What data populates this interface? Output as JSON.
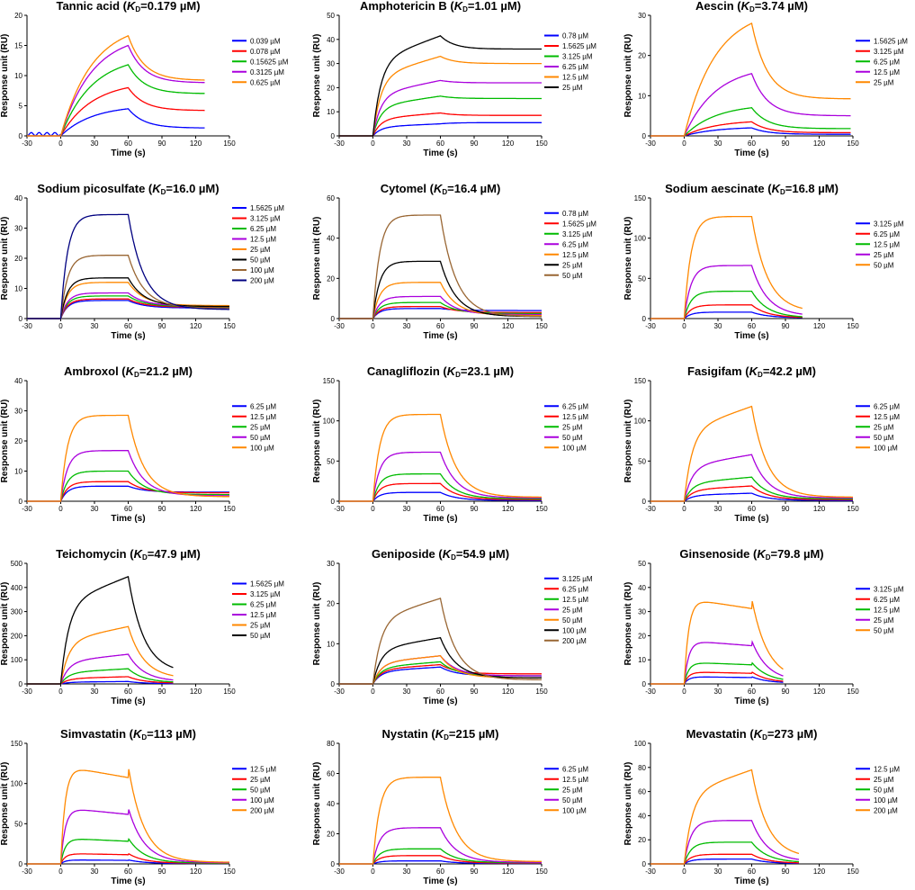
{
  "x_label": "Time (s)",
  "y_label": "Response unit (RU)",
  "kd_symbol": "K",
  "kd_subscript": "D",
  "chart_data": [
    {
      "type": "line",
      "compound": "Tannic acid",
      "kd_value": "0.179 µM",
      "ylim": [
        0,
        20
      ],
      "yticks": [
        0,
        5,
        10,
        15,
        20
      ],
      "xlim": [
        -30,
        150
      ],
      "xticks": [
        -30,
        0,
        30,
        60,
        90,
        120,
        150
      ],
      "end": 128,
      "series": [
        {
          "name": "0.039 µM",
          "color": "#0000ff",
          "peak": 4.5,
          "plateau": 1.3,
          "shape": "ass",
          "baseline_noise": true
        },
        {
          "name": "0.078 µM",
          "color": "#ff0000",
          "peak": 8.0,
          "plateau": 4.2,
          "shape": "ass"
        },
        {
          "name": "0.15625 µM",
          "color": "#00bb00",
          "peak": 11.8,
          "plateau": 7.0,
          "shape": "ass"
        },
        {
          "name": "0.3125 µM",
          "color": "#aa00dd",
          "peak": 15.0,
          "plateau": 8.8,
          "shape": "ass"
        },
        {
          "name": "0.625 µM",
          "color": "#ff8800",
          "peak": 16.6,
          "plateau": 9.2,
          "shape": "ass"
        }
      ]
    },
    {
      "type": "line",
      "compound": "Amphotericin B",
      "kd_value": "1.01 µM",
      "ylim": [
        0,
        50
      ],
      "yticks": [
        0,
        10,
        20,
        30,
        40,
        50
      ],
      "xlim": [
        -30,
        150
      ],
      "xticks": [
        -30,
        0,
        30,
        60,
        90,
        120,
        150
      ],
      "end": 150,
      "series": [
        {
          "name": "0.78 µM",
          "color": "#0000ff",
          "peak": 5.0,
          "plateau": 5.5,
          "shape": "rise"
        },
        {
          "name": "1.5625 µM",
          "color": "#ff0000",
          "peak": 9.5,
          "plateau": 8.5,
          "shape": "rise"
        },
        {
          "name": "3.125 µM",
          "color": "#00bb00",
          "peak": 16.5,
          "plateau": 15.5,
          "shape": "rise"
        },
        {
          "name": "6.25 µM",
          "color": "#aa00dd",
          "peak": 23.0,
          "plateau": 22.0,
          "shape": "rise"
        },
        {
          "name": "12.5 µM",
          "color": "#ff8800",
          "peak": 33.0,
          "plateau": 30.0,
          "shape": "rise"
        },
        {
          "name": "25 µM",
          "color": "#000000",
          "peak": 41.5,
          "plateau": 36.0,
          "shape": "rise"
        }
      ]
    },
    {
      "type": "line",
      "compound": "Aescin",
      "kd_value": "3.74 µM",
      "ylim": [
        0,
        30
      ],
      "yticks": [
        0,
        10,
        20,
        30
      ],
      "xlim": [
        -30,
        150
      ],
      "xticks": [
        -30,
        0,
        30,
        60,
        90,
        120,
        150
      ],
      "end": 148,
      "series": [
        {
          "name": "1.5625 µM",
          "color": "#0000ff",
          "peak": 2.0,
          "plateau": 0.4,
          "shape": "ass"
        },
        {
          "name": "3.125 µM",
          "color": "#ff0000",
          "peak": 3.5,
          "plateau": 0.8,
          "shape": "ass"
        },
        {
          "name": "6.25 µM",
          "color": "#00bb00",
          "peak": 7.0,
          "plateau": 1.8,
          "shape": "ass"
        },
        {
          "name": "12.5 µM",
          "color": "#aa00dd",
          "peak": 15.5,
          "plateau": 5.0,
          "shape": "ass"
        },
        {
          "name": "25 µM",
          "color": "#ff8800",
          "peak": 28.0,
          "plateau": 9.2,
          "shape": "ass"
        }
      ]
    },
    {
      "type": "line",
      "compound": "Sodium picosulfate",
      "kd_value": "16.0 µM",
      "ylim": [
        0,
        40
      ],
      "yticks": [
        0,
        10,
        20,
        30,
        40
      ],
      "xlim": [
        -30,
        150
      ],
      "xticks": [
        -30,
        0,
        30,
        60,
        90,
        120,
        150
      ],
      "end": 150,
      "series": [
        {
          "name": "1.5625 µM",
          "color": "#0000ff",
          "peak": 6.0,
          "plateau": 3.5,
          "shape": "sat"
        },
        {
          "name": "3.125 µM",
          "color": "#ff0000",
          "peak": 6.5,
          "plateau": 3.8,
          "shape": "sat"
        },
        {
          "name": "6.25 µM",
          "color": "#00bb00",
          "peak": 7.5,
          "plateau": 4.0,
          "shape": "sat"
        },
        {
          "name": "12.5 µM",
          "color": "#aa00dd",
          "peak": 8.5,
          "plateau": 4.2,
          "shape": "sat"
        },
        {
          "name": "25 µM",
          "color": "#ff8800",
          "peak": 12.0,
          "plateau": 4.3,
          "shape": "sat"
        },
        {
          "name": "50 µM",
          "color": "#000000",
          "peak": 13.5,
          "plateau": 4.0,
          "shape": "sat"
        },
        {
          "name": "100 µM",
          "color": "#996633",
          "peak": 21.0,
          "plateau": 3.5,
          "shape": "sat"
        },
        {
          "name": "200 µM",
          "color": "#000080",
          "peak": 34.5,
          "plateau": 3.0,
          "shape": "sat"
        }
      ]
    },
    {
      "type": "line",
      "compound": "Cytomel",
      "kd_value": "16.4 µM",
      "ylim": [
        0,
        60
      ],
      "yticks": [
        0,
        20,
        40,
        60
      ],
      "xlim": [
        -30,
        150
      ],
      "xticks": [
        -30,
        0,
        30,
        60,
        90,
        120,
        150
      ],
      "end": 150,
      "series": [
        {
          "name": "0.78 µM",
          "color": "#0000ff",
          "peak": 5.0,
          "plateau": 4.0,
          "shape": "sat"
        },
        {
          "name": "1.5625 µM",
          "color": "#ff0000",
          "peak": 6.0,
          "plateau": 3.0,
          "shape": "sat"
        },
        {
          "name": "3.125 µM",
          "color": "#00bb00",
          "peak": 8.0,
          "plateau": 2.5,
          "shape": "sat"
        },
        {
          "name": "6.25 µM",
          "color": "#aa00dd",
          "peak": 11.0,
          "plateau": 2.0,
          "shape": "sat"
        },
        {
          "name": "12.5 µM",
          "color": "#ff8800",
          "peak": 18.0,
          "plateau": 1.5,
          "shape": "sat"
        },
        {
          "name": "25 µM",
          "color": "#000000",
          "peak": 28.5,
          "plateau": 1.0,
          "shape": "sat"
        },
        {
          "name": "50 µM",
          "color": "#996633",
          "peak": 51.5,
          "plateau": 1.0,
          "shape": "sat"
        }
      ]
    },
    {
      "type": "line",
      "compound": "Sodium aescinate",
      "kd_value": "16.8 µM",
      "ylim": [
        0,
        150
      ],
      "yticks": [
        0,
        50,
        100,
        150
      ],
      "xlim": [
        -30,
        150
      ],
      "xticks": [
        -30,
        0,
        30,
        60,
        90,
        120,
        150
      ],
      "end": 105,
      "series": [
        {
          "name": "3.125 µM",
          "color": "#0000ff",
          "peak": 8.0,
          "plateau": 1.0,
          "shape": "sat"
        },
        {
          "name": "6.25 µM",
          "color": "#ff0000",
          "peak": 17.0,
          "plateau": 1.0,
          "shape": "sat"
        },
        {
          "name": "12.5 µM",
          "color": "#00bb00",
          "peak": 34.0,
          "plateau": 1.0,
          "shape": "sat"
        },
        {
          "name": "25 µM",
          "color": "#aa00dd",
          "peak": 66.0,
          "plateau": 3.0,
          "shape": "sat"
        },
        {
          "name": "50 µM",
          "color": "#ff8800",
          "peak": 127.0,
          "plateau": 8.0,
          "shape": "sat"
        }
      ]
    },
    {
      "type": "line",
      "compound": "Ambroxol",
      "kd_value": "21.2 µM",
      "ylim": [
        0,
        40
      ],
      "yticks": [
        0,
        10,
        20,
        30,
        40
      ],
      "xlim": [
        -30,
        150
      ],
      "xticks": [
        -30,
        0,
        30,
        60,
        90,
        120,
        150
      ],
      "end": 150,
      "series": [
        {
          "name": "6.25 µM",
          "color": "#0000ff",
          "peak": 5.0,
          "plateau": 3.0,
          "shape": "sat"
        },
        {
          "name": "12.5 µM",
          "color": "#ff0000",
          "peak": 6.5,
          "plateau": 2.8,
          "shape": "sat"
        },
        {
          "name": "25 µM",
          "color": "#00bb00",
          "peak": 10.0,
          "plateau": 2.2,
          "shape": "sat"
        },
        {
          "name": "50 µM",
          "color": "#aa00dd",
          "peak": 16.8,
          "plateau": 1.8,
          "shape": "sat"
        },
        {
          "name": "100 µM",
          "color": "#ff8800",
          "peak": 28.5,
          "plateau": 1.5,
          "shape": "sat"
        }
      ]
    },
    {
      "type": "line",
      "compound": "Canagliflozin",
      "kd_value": "23.1 µM",
      "ylim": [
        0,
        150
      ],
      "yticks": [
        0,
        50,
        100,
        150
      ],
      "xlim": [
        -30,
        150
      ],
      "xticks": [
        -30,
        0,
        30,
        60,
        90,
        120,
        150
      ],
      "end": 150,
      "series": [
        {
          "name": "6.25 µM",
          "color": "#0000ff",
          "peak": 11.0,
          "plateau": 1.0,
          "shape": "sat"
        },
        {
          "name": "12.5 µM",
          "color": "#ff0000",
          "peak": 22.0,
          "plateau": 2.0,
          "shape": "sat"
        },
        {
          "name": "25 µM",
          "color": "#00bb00",
          "peak": 34.0,
          "plateau": 3.0,
          "shape": "sat"
        },
        {
          "name": "50 µM",
          "color": "#aa00dd",
          "peak": 61.0,
          "plateau": 4.0,
          "shape": "sat"
        },
        {
          "name": "100 µM",
          "color": "#ff8800",
          "peak": 108.0,
          "plateau": 5.0,
          "shape": "sat"
        }
      ]
    },
    {
      "type": "line",
      "compound": "Fasigifam",
      "kd_value": "42.2 µM",
      "ylim": [
        0,
        150
      ],
      "yticks": [
        0,
        50,
        100,
        150
      ],
      "xlim": [
        -30,
        150
      ],
      "xticks": [
        -30,
        0,
        30,
        60,
        90,
        120,
        150
      ],
      "end": 150,
      "series": [
        {
          "name": "6.25 µM",
          "color": "#0000ff",
          "peak": 10.0,
          "plateau": 1.0,
          "shape": "rise"
        },
        {
          "name": "12.5 µM",
          "color": "#ff0000",
          "peak": 19.0,
          "plateau": 2.0,
          "shape": "rise"
        },
        {
          "name": "25 µM",
          "color": "#00bb00",
          "peak": 30.0,
          "plateau": 3.0,
          "shape": "rise"
        },
        {
          "name": "50 µM",
          "color": "#aa00dd",
          "peak": 58.0,
          "plateau": 4.0,
          "shape": "rise"
        },
        {
          "name": "100 µM",
          "color": "#ff8800",
          "peak": 118.0,
          "plateau": 5.0,
          "shape": "rise"
        }
      ]
    },
    {
      "type": "line",
      "compound": "Teichomycin",
      "kd_value": "47.9 µM",
      "ylim": [
        0,
        500
      ],
      "yticks": [
        0,
        100,
        200,
        300,
        400,
        500
      ],
      "xlim": [
        -30,
        150
      ],
      "xticks": [
        -30,
        0,
        30,
        60,
        90,
        120,
        150
      ],
      "end": 100,
      "series": [
        {
          "name": "1.5625 µM",
          "color": "#0000ff",
          "peak": 10.0,
          "plateau": 1.0,
          "shape": "rise"
        },
        {
          "name": "3.125 µM",
          "color": "#ff0000",
          "peak": 30.0,
          "plateau": 3.0,
          "shape": "rise"
        },
        {
          "name": "6.25 µM",
          "color": "#00bb00",
          "peak": 63.0,
          "plateau": 5.0,
          "shape": "rise"
        },
        {
          "name": "12.5 µM",
          "color": "#aa00dd",
          "peak": 123.0,
          "plateau": 10.0,
          "shape": "rise"
        },
        {
          "name": "25 µM",
          "color": "#ff8800",
          "peak": 238.0,
          "plateau": 22.0,
          "shape": "rise"
        },
        {
          "name": "50 µM",
          "color": "#000000",
          "peak": 445.0,
          "plateau": 45.0,
          "shape": "rise"
        }
      ]
    },
    {
      "type": "line",
      "compound": "Geniposide",
      "kd_value": "54.9 µM",
      "ylim": [
        0,
        30
      ],
      "yticks": [
        0,
        10,
        20,
        30
      ],
      "xlim": [
        -30,
        150
      ],
      "xticks": [
        -30,
        0,
        30,
        60,
        90,
        120,
        150
      ],
      "end": 150,
      "series": [
        {
          "name": "3.125 µM",
          "color": "#0000ff",
          "peak": 4.2,
          "plateau": 2.0,
          "shape": "rise"
        },
        {
          "name": "6.25 µM",
          "color": "#ff0000",
          "peak": 4.8,
          "plateau": 2.5,
          "shape": "rise"
        },
        {
          "name": "12.5 µM",
          "color": "#00bb00",
          "peak": 5.5,
          "plateau": 2.0,
          "shape": "rise"
        },
        {
          "name": "25 µM",
          "color": "#aa00dd",
          "peak": 7.0,
          "plateau": 2.0,
          "shape": "rise"
        },
        {
          "name": "50 µM",
          "color": "#ff8800",
          "peak": 7.0,
          "plateau": 1.5,
          "shape": "rise"
        },
        {
          "name": "100 µM",
          "color": "#000000",
          "peak": 11.5,
          "plateau": 1.5,
          "shape": "rise"
        },
        {
          "name": "200 µM",
          "color": "#996633",
          "peak": 21.3,
          "plateau": 1.0,
          "shape": "rise"
        }
      ]
    },
    {
      "type": "line",
      "compound": "Ginsenoside",
      "kd_value": "79.8 µM",
      "ylim": [
        0,
        50
      ],
      "yticks": [
        0,
        10,
        20,
        30,
        40,
        50
      ],
      "xlim": [
        -30,
        150
      ],
      "xticks": [
        -30,
        0,
        30,
        60,
        90,
        120,
        150
      ],
      "end": 88,
      "series": [
        {
          "name": "3.125 µM",
          "color": "#0000ff",
          "peak": 3.0,
          "plateau": 0.3,
          "shape": "hump"
        },
        {
          "name": "6.25 µM",
          "color": "#ff0000",
          "peak": 5.0,
          "plateau": 0.5,
          "shape": "hump"
        },
        {
          "name": "12.5 µM",
          "color": "#00bb00",
          "peak": 9.0,
          "plateau": 0.8,
          "shape": "hump"
        },
        {
          "name": "25 µM",
          "color": "#aa00dd",
          "peak": 18.0,
          "plateau": 1.0,
          "shape": "hump"
        },
        {
          "name": "50 µM",
          "color": "#ff8800",
          "peak": 35.5,
          "plateau": 1.5,
          "shape": "hump"
        }
      ]
    },
    {
      "type": "line",
      "compound": "Simvastatin",
      "kd_value": "113 µM",
      "ylim": [
        0,
        150
      ],
      "yticks": [
        0,
        50,
        100,
        150
      ],
      "xlim": [
        -30,
        150
      ],
      "xticks": [
        -30,
        0,
        30,
        60,
        90,
        120,
        150
      ],
      "end": 150,
      "series": [
        {
          "name": "12.5 µM",
          "color": "#0000ff",
          "peak": 5.0,
          "plateau": 0.5,
          "shape": "hump"
        },
        {
          "name": "25 µM",
          "color": "#ff0000",
          "peak": 13.0,
          "plateau": 0.8,
          "shape": "hump"
        },
        {
          "name": "50 µM",
          "color": "#00bb00",
          "peak": 32.0,
          "plateau": 1.0,
          "shape": "hump"
        },
        {
          "name": "100 µM",
          "color": "#aa00dd",
          "peak": 70.0,
          "plateau": 1.5,
          "shape": "hump"
        },
        {
          "name": "200 µM",
          "color": "#ff8800",
          "peak": 122.0,
          "plateau": 2.0,
          "shape": "hump"
        }
      ]
    },
    {
      "type": "line",
      "compound": "Nystatin",
      "kd_value": "215 µM",
      "ylim": [
        0,
        80
      ],
      "yticks": [
        0,
        20,
        40,
        60,
        80
      ],
      "xlim": [
        -30,
        150
      ],
      "xticks": [
        -30,
        0,
        30,
        60,
        90,
        120,
        150
      ],
      "end": 150,
      "series": [
        {
          "name": "6.25 µM",
          "color": "#0000ff",
          "peak": 2.0,
          "plateau": 0.3,
          "shape": "sat"
        },
        {
          "name": "12.5 µM",
          "color": "#ff0000",
          "peak": 5.5,
          "plateau": 0.5,
          "shape": "sat"
        },
        {
          "name": "25 µM",
          "color": "#00bb00",
          "peak": 10.0,
          "plateau": 0.8,
          "shape": "sat"
        },
        {
          "name": "50 µM",
          "color": "#aa00dd",
          "peak": 24.0,
          "plateau": 1.0,
          "shape": "sat"
        },
        {
          "name": "100 µM",
          "color": "#ff8800",
          "peak": 57.5,
          "plateau": 1.5,
          "shape": "sat"
        }
      ]
    },
    {
      "type": "line",
      "compound": "Mevastatin",
      "kd_value": "273 µM",
      "ylim": [
        0,
        100
      ],
      "yticks": [
        0,
        20,
        40,
        60,
        80,
        100
      ],
      "xlim": [
        -30,
        150
      ],
      "xticks": [
        -30,
        0,
        30,
        60,
        90,
        120,
        150
      ],
      "end": 102,
      "series": [
        {
          "name": "12.5 µM",
          "color": "#0000ff",
          "peak": 4.0,
          "plateau": 0.3,
          "shape": "sat"
        },
        {
          "name": "25 µM",
          "color": "#ff0000",
          "peak": 8.0,
          "plateau": 0.5,
          "shape": "sat"
        },
        {
          "name": "50 µM",
          "color": "#00bb00",
          "peak": 18.0,
          "plateau": 1.0,
          "shape": "sat"
        },
        {
          "name": "100 µM",
          "color": "#aa00dd",
          "peak": 36.0,
          "plateau": 2.0,
          "shape": "sat"
        },
        {
          "name": "200 µM",
          "color": "#ff8800",
          "peak": 78.0,
          "plateau": 5.0,
          "shape": "rise"
        }
      ]
    }
  ]
}
